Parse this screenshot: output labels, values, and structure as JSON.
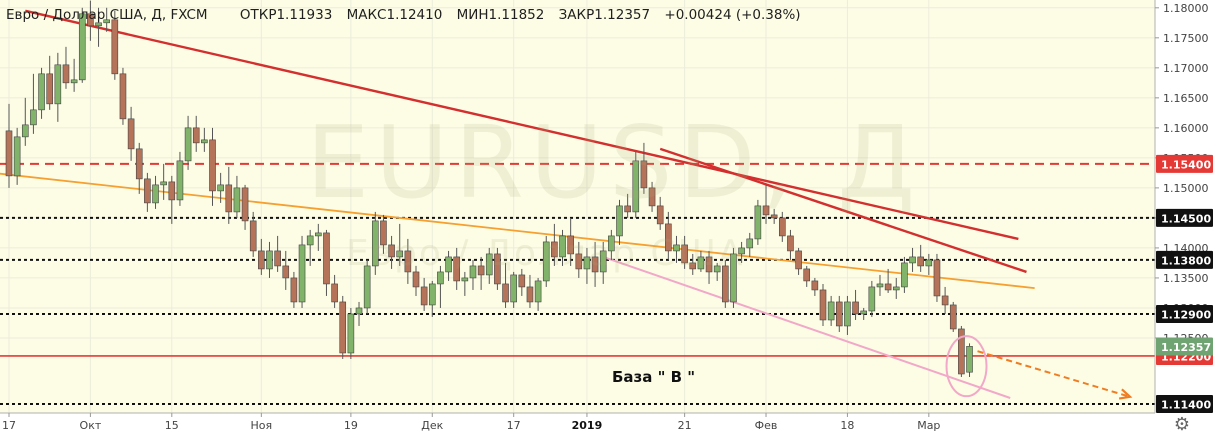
{
  "header": {
    "symbol": "Евро / Доллар США, Д, FXCM",
    "open_label": "ОТКР",
    "open": "1.11933",
    "high_label": "МАКС",
    "high": "1.12410",
    "low_label": "МИН",
    "low": "1.11852",
    "close_label": "ЗАКР",
    "close": "1.12357",
    "change": "+0.00424 (+0.38%)"
  },
  "watermark": {
    "main": "EURUSD, Д",
    "sub": "Евро / Доллар США"
  },
  "colors": {
    "background": "#ffffff",
    "plot_background": "#fdfde6",
    "candle_up": "#81b46a",
    "candle_down": "#b5735a",
    "grid": "#ececdc",
    "trend_red": "#d32f2f",
    "trend_orange": "#f5a030",
    "trend_pink": "#f2a8c8",
    "level_dashed": "#111111",
    "level_red": "#e53935",
    "current_price": "#6fa371",
    "arrow": "#ef7d22"
  },
  "annotation_label": "База  \" В \"",
  "chart_data": {
    "type": "candlestick",
    "title": "Евро / Доллар США, Д, FXCM",
    "xlabel": "",
    "ylabel": "",
    "ylim": [
      1.1125,
      1.1813
    ],
    "x_ticks": [
      {
        "i": 0,
        "label": "17"
      },
      {
        "i": 10,
        "label": "Окт"
      },
      {
        "i": 20,
        "label": "15"
      },
      {
        "i": 31,
        "label": "Ноя"
      },
      {
        "i": 42,
        "label": "19"
      },
      {
        "i": 52,
        "label": "Дек"
      },
      {
        "i": 62,
        "label": "17"
      },
      {
        "i": 71,
        "label": "2019"
      },
      {
        "i": 83,
        "label": "21"
      },
      {
        "i": 93,
        "label": "Фев"
      },
      {
        "i": 103,
        "label": "18"
      },
      {
        "i": 113,
        "label": "Мар"
      }
    ],
    "y_ticks": [
      "1.18000",
      "1.17500",
      "1.17000",
      "1.16500",
      "1.16000",
      "1.15500",
      "1.15000",
      "1.14500",
      "1.14000",
      "1.13500",
      "1.13000",
      "1.12500"
    ],
    "levels": [
      {
        "price": 1.154,
        "label": "1.15400",
        "style": "red-dashed"
      },
      {
        "price": 1.145,
        "label": "1.14500",
        "style": "black-dotted"
      },
      {
        "price": 1.138,
        "label": "1.13800",
        "style": "black-dotted"
      },
      {
        "price": 1.129,
        "label": "1.12900",
        "style": "black-dotted"
      },
      {
        "price": 1.122,
        "label": "1.12200",
        "style": "red-solid"
      },
      {
        "price": 1.114,
        "label": "1.11400",
        "style": "black-dotted"
      }
    ],
    "current_price": {
      "price": 1.12357,
      "label": "1.12357"
    },
    "trendlines": [
      {
        "color": "red",
        "from": {
          "i": 2,
          "p": 1.1795
        },
        "to": {
          "i": 124,
          "p": 1.1415
        }
      },
      {
        "color": "red",
        "from": {
          "i": 80,
          "p": 1.1565
        },
        "to": {
          "i": 125,
          "p": 1.136
        }
      },
      {
        "color": "orange",
        "from": {
          "i": -4,
          "p": 1.1528
        },
        "to": {
          "i": 126,
          "p": 1.1333
        }
      },
      {
        "color": "pink",
        "from": {
          "i": 73,
          "p": 1.1385
        },
        "to": {
          "i": 123,
          "p": 1.115
        }
      }
    ],
    "candles": [
      {
        "o": 1.1595,
        "h": 1.164,
        "l": 1.15,
        "c": 1.152
      },
      {
        "o": 1.152,
        "h": 1.16,
        "l": 1.1505,
        "c": 1.1585
      },
      {
        "o": 1.1585,
        "h": 1.165,
        "l": 1.157,
        "c": 1.1605
      },
      {
        "o": 1.1605,
        "h": 1.169,
        "l": 1.159,
        "c": 1.163
      },
      {
        "o": 1.163,
        "h": 1.17,
        "l": 1.1615,
        "c": 1.169
      },
      {
        "o": 1.169,
        "h": 1.172,
        "l": 1.163,
        "c": 1.164
      },
      {
        "o": 1.164,
        "h": 1.1725,
        "l": 1.161,
        "c": 1.1705
      },
      {
        "o": 1.1705,
        "h": 1.1735,
        "l": 1.1665,
        "c": 1.1675
      },
      {
        "o": 1.1675,
        "h": 1.1715,
        "l": 1.166,
        "c": 1.168
      },
      {
        "o": 1.168,
        "h": 1.18,
        "l": 1.1675,
        "c": 1.179
      },
      {
        "o": 1.179,
        "h": 1.1812,
        "l": 1.1745,
        "c": 1.177
      },
      {
        "o": 1.177,
        "h": 1.18,
        "l": 1.1735,
        "c": 1.1775
      },
      {
        "o": 1.1775,
        "h": 1.18,
        "l": 1.176,
        "c": 1.178
      },
      {
        "o": 1.178,
        "h": 1.1795,
        "l": 1.168,
        "c": 1.169
      },
      {
        "o": 1.169,
        "h": 1.17,
        "l": 1.1605,
        "c": 1.1615
      },
      {
        "o": 1.1615,
        "h": 1.1635,
        "l": 1.1545,
        "c": 1.1565
      },
      {
        "o": 1.1565,
        "h": 1.1575,
        "l": 1.149,
        "c": 1.1515
      },
      {
        "o": 1.1515,
        "h": 1.1525,
        "l": 1.146,
        "c": 1.1475
      },
      {
        "o": 1.1475,
        "h": 1.152,
        "l": 1.1465,
        "c": 1.1505
      },
      {
        "o": 1.1505,
        "h": 1.154,
        "l": 1.148,
        "c": 1.151
      },
      {
        "o": 1.151,
        "h": 1.152,
        "l": 1.144,
        "c": 1.148
      },
      {
        "o": 1.148,
        "h": 1.156,
        "l": 1.147,
        "c": 1.1545
      },
      {
        "o": 1.1545,
        "h": 1.162,
        "l": 1.153,
        "c": 1.16
      },
      {
        "o": 1.16,
        "h": 1.162,
        "l": 1.156,
        "c": 1.1575
      },
      {
        "o": 1.1575,
        "h": 1.16,
        "l": 1.156,
        "c": 1.158
      },
      {
        "o": 1.158,
        "h": 1.16,
        "l": 1.147,
        "c": 1.1495
      },
      {
        "o": 1.1495,
        "h": 1.1525,
        "l": 1.1475,
        "c": 1.1505
      },
      {
        "o": 1.1505,
        "h": 1.1535,
        "l": 1.144,
        "c": 1.146
      },
      {
        "o": 1.146,
        "h": 1.152,
        "l": 1.145,
        "c": 1.15
      },
      {
        "o": 1.15,
        "h": 1.1505,
        "l": 1.143,
        "c": 1.1445
      },
      {
        "o": 1.1445,
        "h": 1.146,
        "l": 1.1385,
        "c": 1.1395
      },
      {
        "o": 1.1395,
        "h": 1.1415,
        "l": 1.1355,
        "c": 1.1365
      },
      {
        "o": 1.1365,
        "h": 1.141,
        "l": 1.135,
        "c": 1.1395
      },
      {
        "o": 1.1395,
        "h": 1.142,
        "l": 1.136,
        "c": 1.137
      },
      {
        "o": 1.137,
        "h": 1.1395,
        "l": 1.133,
        "c": 1.135
      },
      {
        "o": 1.135,
        "h": 1.136,
        "l": 1.13,
        "c": 1.131
      },
      {
        "o": 1.131,
        "h": 1.142,
        "l": 1.13,
        "c": 1.1405
      },
      {
        "o": 1.1405,
        "h": 1.143,
        "l": 1.137,
        "c": 1.142
      },
      {
        "o": 1.142,
        "h": 1.144,
        "l": 1.1395,
        "c": 1.1425
      },
      {
        "o": 1.1425,
        "h": 1.143,
        "l": 1.132,
        "c": 1.134
      },
      {
        "o": 1.134,
        "h": 1.1355,
        "l": 1.13,
        "c": 1.131
      },
      {
        "o": 1.131,
        "h": 1.132,
        "l": 1.1215,
        "c": 1.1225
      },
      {
        "o": 1.1225,
        "h": 1.13,
        "l": 1.1215,
        "c": 1.129
      },
      {
        "o": 1.129,
        "h": 1.131,
        "l": 1.127,
        "c": 1.13
      },
      {
        "o": 1.13,
        "h": 1.138,
        "l": 1.129,
        "c": 1.137
      },
      {
        "o": 1.137,
        "h": 1.146,
        "l": 1.1355,
        "c": 1.1445
      },
      {
        "o": 1.1445,
        "h": 1.1455,
        "l": 1.139,
        "c": 1.1405
      },
      {
        "o": 1.1405,
        "h": 1.142,
        "l": 1.1365,
        "c": 1.1385
      },
      {
        "o": 1.1385,
        "h": 1.144,
        "l": 1.137,
        "c": 1.1395
      },
      {
        "o": 1.1395,
        "h": 1.1415,
        "l": 1.134,
        "c": 1.136
      },
      {
        "o": 1.136,
        "h": 1.137,
        "l": 1.132,
        "c": 1.1335
      },
      {
        "o": 1.1335,
        "h": 1.135,
        "l": 1.1295,
        "c": 1.1305
      },
      {
        "o": 1.1305,
        "h": 1.1345,
        "l": 1.1285,
        "c": 1.134
      },
      {
        "o": 1.134,
        "h": 1.137,
        "l": 1.13,
        "c": 1.136
      },
      {
        "o": 1.136,
        "h": 1.1395,
        "l": 1.1345,
        "c": 1.1385
      },
      {
        "o": 1.1385,
        "h": 1.14,
        "l": 1.133,
        "c": 1.1345
      },
      {
        "o": 1.1345,
        "h": 1.136,
        "l": 1.132,
        "c": 1.135
      },
      {
        "o": 1.135,
        "h": 1.138,
        "l": 1.133,
        "c": 1.137
      },
      {
        "o": 1.137,
        "h": 1.1385,
        "l": 1.133,
        "c": 1.1355
      },
      {
        "o": 1.1355,
        "h": 1.14,
        "l": 1.134,
        "c": 1.139
      },
      {
        "o": 1.139,
        "h": 1.14,
        "l": 1.133,
        "c": 1.134
      },
      {
        "o": 1.134,
        "h": 1.1375,
        "l": 1.13,
        "c": 1.131
      },
      {
        "o": 1.131,
        "h": 1.136,
        "l": 1.13,
        "c": 1.1355
      },
      {
        "o": 1.1355,
        "h": 1.1365,
        "l": 1.132,
        "c": 1.1335
      },
      {
        "o": 1.1335,
        "h": 1.1355,
        "l": 1.13,
        "c": 1.131
      },
      {
        "o": 1.131,
        "h": 1.135,
        "l": 1.1295,
        "c": 1.1345
      },
      {
        "o": 1.1345,
        "h": 1.142,
        "l": 1.1335,
        "c": 1.141
      },
      {
        "o": 1.141,
        "h": 1.144,
        "l": 1.137,
        "c": 1.1385
      },
      {
        "o": 1.1385,
        "h": 1.143,
        "l": 1.137,
        "c": 1.142
      },
      {
        "o": 1.142,
        "h": 1.145,
        "l": 1.137,
        "c": 1.139
      },
      {
        "o": 1.139,
        "h": 1.141,
        "l": 1.135,
        "c": 1.1365
      },
      {
        "o": 1.1365,
        "h": 1.14,
        "l": 1.134,
        "c": 1.1385
      },
      {
        "o": 1.1385,
        "h": 1.141,
        "l": 1.1335,
        "c": 1.136
      },
      {
        "o": 1.136,
        "h": 1.141,
        "l": 1.134,
        "c": 1.1395
      },
      {
        "o": 1.1395,
        "h": 1.143,
        "l": 1.138,
        "c": 1.142
      },
      {
        "o": 1.142,
        "h": 1.148,
        "l": 1.1405,
        "c": 1.147
      },
      {
        "o": 1.147,
        "h": 1.149,
        "l": 1.145,
        "c": 1.146
      },
      {
        "o": 1.146,
        "h": 1.156,
        "l": 1.145,
        "c": 1.1545
      },
      {
        "o": 1.1545,
        "h": 1.1575,
        "l": 1.149,
        "c": 1.15
      },
      {
        "o": 1.15,
        "h": 1.151,
        "l": 1.146,
        "c": 1.147
      },
      {
        "o": 1.147,
        "h": 1.1485,
        "l": 1.143,
        "c": 1.144
      },
      {
        "o": 1.144,
        "h": 1.146,
        "l": 1.138,
        "c": 1.1395
      },
      {
        "o": 1.1395,
        "h": 1.142,
        "l": 1.1375,
        "c": 1.1405
      },
      {
        "o": 1.1405,
        "h": 1.142,
        "l": 1.1365,
        "c": 1.1375
      },
      {
        "o": 1.1375,
        "h": 1.139,
        "l": 1.1355,
        "c": 1.1365
      },
      {
        "o": 1.1365,
        "h": 1.1395,
        "l": 1.136,
        "c": 1.1385
      },
      {
        "o": 1.1385,
        "h": 1.1395,
        "l": 1.134,
        "c": 1.136
      },
      {
        "o": 1.136,
        "h": 1.1375,
        "l": 1.1345,
        "c": 1.137
      },
      {
        "o": 1.137,
        "h": 1.138,
        "l": 1.13,
        "c": 1.131
      },
      {
        "o": 1.131,
        "h": 1.14,
        "l": 1.13,
        "c": 1.139
      },
      {
        "o": 1.139,
        "h": 1.141,
        "l": 1.1375,
        "c": 1.14
      },
      {
        "o": 1.14,
        "h": 1.1425,
        "l": 1.1385,
        "c": 1.1415
      },
      {
        "o": 1.1415,
        "h": 1.148,
        "l": 1.1405,
        "c": 1.147
      },
      {
        "o": 1.147,
        "h": 1.1505,
        "l": 1.144,
        "c": 1.1455
      },
      {
        "o": 1.1455,
        "h": 1.1465,
        "l": 1.144,
        "c": 1.145
      },
      {
        "o": 1.145,
        "h": 1.146,
        "l": 1.141,
        "c": 1.142
      },
      {
        "o": 1.142,
        "h": 1.143,
        "l": 1.138,
        "c": 1.1395
      },
      {
        "o": 1.1395,
        "h": 1.14,
        "l": 1.1355,
        "c": 1.1365
      },
      {
        "o": 1.1365,
        "h": 1.137,
        "l": 1.1335,
        "c": 1.1345
      },
      {
        "o": 1.1345,
        "h": 1.135,
        "l": 1.132,
        "c": 1.133
      },
      {
        "o": 1.133,
        "h": 1.134,
        "l": 1.127,
        "c": 1.128
      },
      {
        "o": 1.128,
        "h": 1.132,
        "l": 1.127,
        "c": 1.131
      },
      {
        "o": 1.131,
        "h": 1.132,
        "l": 1.126,
        "c": 1.127
      },
      {
        "o": 1.127,
        "h": 1.132,
        "l": 1.1255,
        "c": 1.131
      },
      {
        "o": 1.131,
        "h": 1.133,
        "l": 1.128,
        "c": 1.129
      },
      {
        "o": 1.129,
        "h": 1.13,
        "l": 1.128,
        "c": 1.1295
      },
      {
        "o": 1.1295,
        "h": 1.1345,
        "l": 1.1285,
        "c": 1.1335
      },
      {
        "o": 1.1335,
        "h": 1.1355,
        "l": 1.132,
        "c": 1.134
      },
      {
        "o": 1.134,
        "h": 1.1365,
        "l": 1.1325,
        "c": 1.133
      },
      {
        "o": 1.133,
        "h": 1.135,
        "l": 1.1315,
        "c": 1.1335
      },
      {
        "o": 1.1335,
        "h": 1.1385,
        "l": 1.1325,
        "c": 1.1375
      },
      {
        "o": 1.1375,
        "h": 1.14,
        "l": 1.136,
        "c": 1.1385
      },
      {
        "o": 1.1385,
        "h": 1.1405,
        "l": 1.136,
        "c": 1.137
      },
      {
        "o": 1.137,
        "h": 1.139,
        "l": 1.1355,
        "c": 1.138
      },
      {
        "o": 1.138,
        "h": 1.139,
        "l": 1.131,
        "c": 1.132
      },
      {
        "o": 1.132,
        "h": 1.1335,
        "l": 1.129,
        "c": 1.1305
      },
      {
        "o": 1.1305,
        "h": 1.131,
        "l": 1.126,
        "c": 1.1265
      },
      {
        "o": 1.1265,
        "h": 1.127,
        "l": 1.1185,
        "c": 1.119
      },
      {
        "o": 1.1193,
        "h": 1.1241,
        "l": 1.1185,
        "c": 1.1236
      }
    ]
  }
}
